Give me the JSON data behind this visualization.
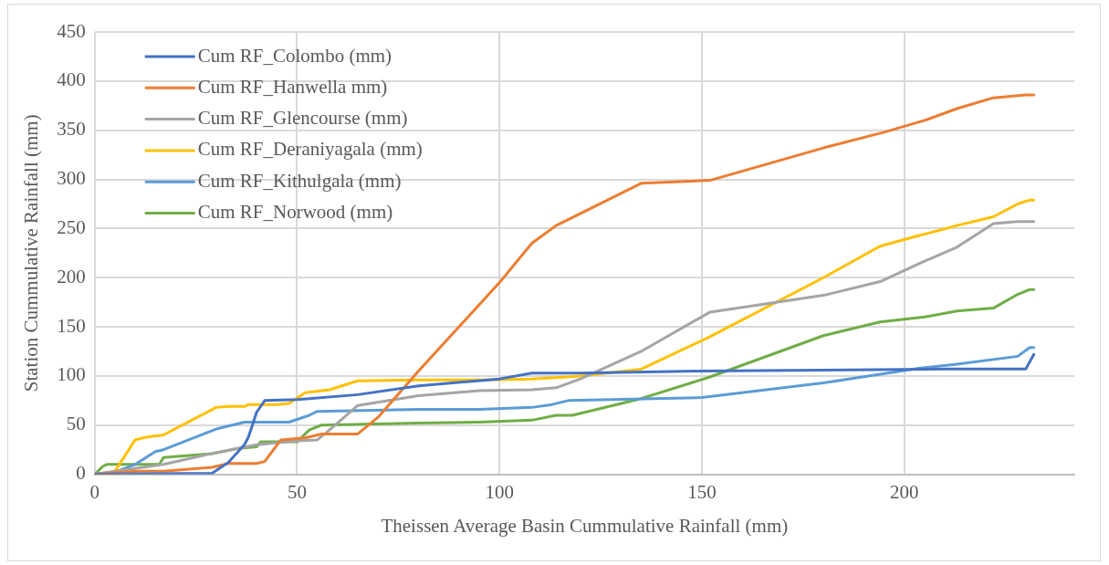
{
  "chart_data": {
    "type": "line",
    "xlabel": "Theissen Average Basin Cummulative Rainfall (mm)",
    "ylabel": "Station Cummulative Rainfall (mm)",
    "xlim": [
      0,
      242
    ],
    "xticks": [
      0,
      50,
      100,
      150,
      200
    ],
    "ylim": [
      0,
      450
    ],
    "yticks": [
      0,
      50,
      100,
      150,
      200,
      250,
      300,
      350,
      400,
      450
    ],
    "grid": true,
    "legend": "top left",
    "marker": "none",
    "line_style": "solid",
    "series": [
      {
        "name": "Cum RF_Colombo (mm)",
        "color": "#4472c4",
        "x": [
          0,
          29,
          33,
          37,
          38,
          40,
          42,
          50,
          53,
          65,
          80,
          100,
          108,
          120,
          150,
          180,
          210,
          230,
          232
        ],
        "values": [
          0,
          1,
          12,
          30,
          38,
          63,
          75,
          76,
          77,
          81,
          90,
          97,
          103,
          103,
          105,
          106,
          107,
          107,
          122
        ]
      },
      {
        "name": "Cum RF_Hanwella mm)",
        "color": "#ed7d31",
        "x": [
          0,
          10,
          17,
          29,
          33,
          40,
          42,
          46,
          52,
          56,
          65,
          70,
          80,
          90,
          100,
          108,
          114,
          135,
          152,
          180,
          195,
          205,
          213,
          222,
          230,
          232
        ],
        "values": [
          0,
          3,
          3,
          7,
          11,
          11,
          13,
          35,
          37,
          41,
          41,
          58,
          105,
          150,
          195,
          235,
          253,
          296,
          299,
          332,
          348,
          360,
          372,
          383,
          386,
          386
        ]
      },
      {
        "name": "Cum RF_Glencourse (mm)",
        "color": "#a5a5a5",
        "x": [
          0,
          17,
          30,
          40,
          50,
          55,
          58,
          65,
          80,
          95,
          108,
          114,
          120,
          135,
          152,
          180,
          194,
          204,
          213,
          222,
          228,
          232
        ],
        "values": [
          0,
          10,
          22,
          30,
          34,
          35,
          45,
          70,
          80,
          85,
          86,
          88,
          97,
          125,
          165,
          182,
          196,
          215,
          231,
          255,
          257,
          257
        ]
      },
      {
        "name": "Cum RF_Deraniyagala (mm)",
        "color": "#ffc000",
        "x": [
          0,
          5,
          10,
          13,
          17,
          30,
          33,
          37,
          38,
          45,
          48,
          52,
          58,
          65,
          80,
          96,
          108,
          120,
          135,
          152,
          180,
          194,
          202,
          213,
          222,
          228,
          231,
          232
        ],
        "values": [
          0,
          3,
          35,
          38,
          40,
          68,
          69,
          69,
          71,
          71,
          72,
          83,
          86,
          95,
          96,
          96,
          97,
          100,
          107,
          140,
          200,
          232,
          241,
          253,
          262,
          275,
          279,
          279
        ]
      },
      {
        "name": "Cum RF_Kithulgala (mm)",
        "color": "#5b9bd5",
        "x": [
          0,
          5,
          10,
          15,
          17,
          30,
          33,
          37,
          48,
          53,
          55,
          80,
          95,
          108,
          113,
          117,
          150,
          180,
          204,
          213,
          228,
          231,
          232
        ],
        "values": [
          0,
          2,
          10,
          23,
          25,
          46,
          49,
          53,
          53,
          60,
          64,
          66,
          66,
          68,
          71,
          75,
          78,
          93,
          108,
          112,
          120,
          129,
          129
        ]
      },
      {
        "name": "Cum RF_Norwood (mm)",
        "color": "#70ad47",
        "x": [
          0,
          2,
          3,
          10,
          16,
          17,
          29,
          35,
          40,
          41,
          50,
          53,
          56,
          80,
          95,
          108,
          114,
          118,
          135,
          152,
          180,
          194,
          205,
          213,
          222,
          228,
          231,
          232
        ],
        "values": [
          0,
          8,
          10,
          10,
          10,
          17,
          21,
          26,
          28,
          33,
          33,
          45,
          50,
          52,
          53,
          55,
          60,
          60,
          77,
          99,
          141,
          155,
          160,
          166,
          169,
          183,
          188,
          188
        ]
      }
    ]
  }
}
